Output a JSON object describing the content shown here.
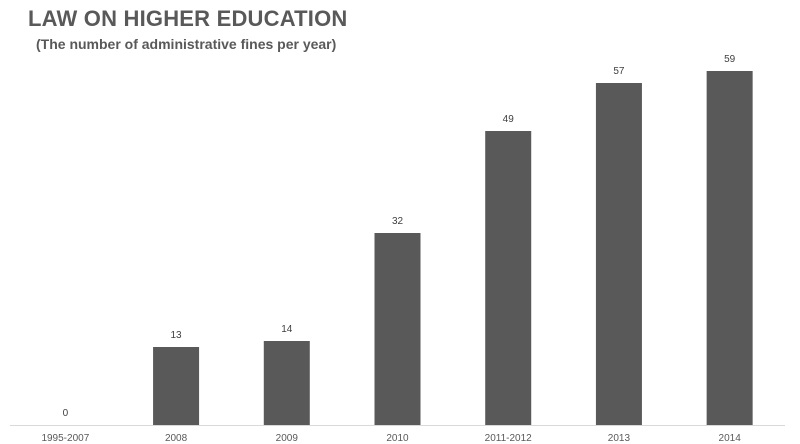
{
  "chart_data": {
    "type": "bar",
    "title": "LAW ON HIGHER EDUCATION",
    "subtitle": "(The number of administrative fines per year)",
    "categories": [
      "1995-2007",
      "2008",
      "2009",
      "2010",
      "2011-2012",
      "2013",
      "2014"
    ],
    "values": [
      0,
      13,
      14,
      32,
      49,
      57,
      59
    ],
    "data_labels": [
      "0",
      "13",
      "14",
      "32",
      "49",
      "57",
      "59"
    ],
    "xlabel": "",
    "ylabel": "",
    "ylim": [
      0,
      60
    ],
    "grid": false,
    "legend": "none",
    "bar_color": "#595959",
    "axis_color": "#d9d9d9",
    "text_color": "#595959"
  }
}
